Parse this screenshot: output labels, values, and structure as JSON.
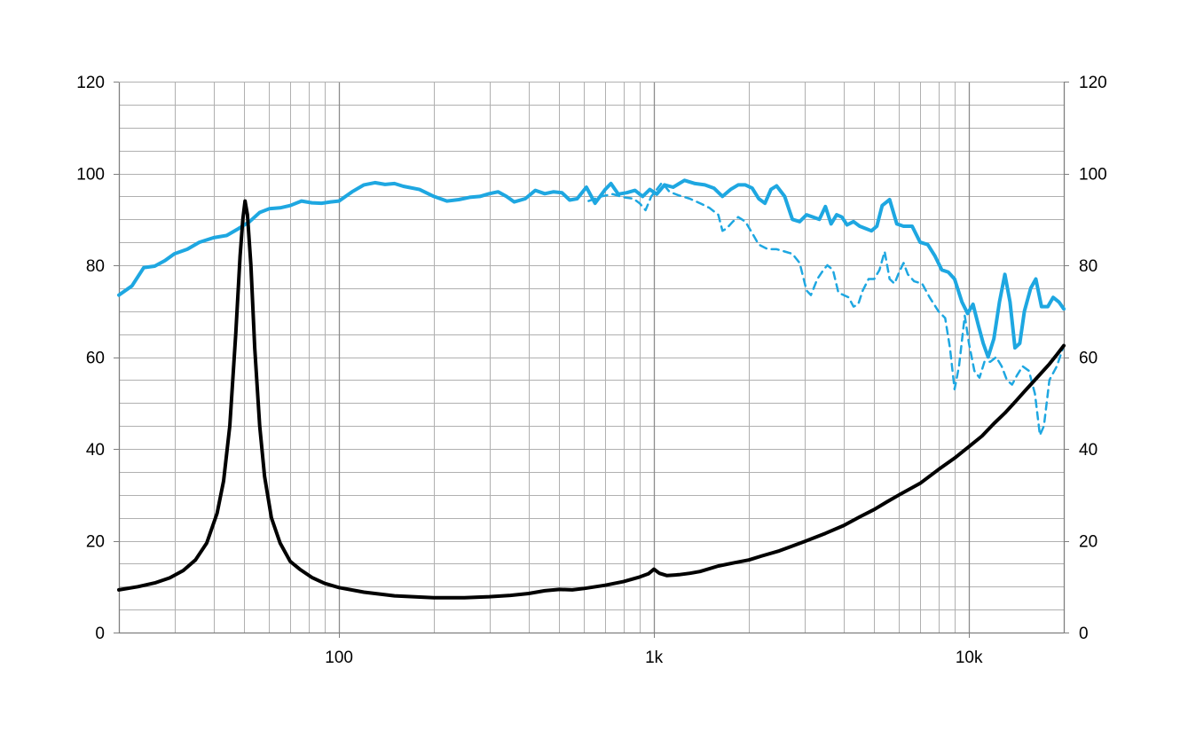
{
  "chart_data": {
    "type": "line",
    "title": "",
    "xlabel": "",
    "ylabel": "",
    "x_scale": "log",
    "xlim": [
      20,
      20000
    ],
    "ylim": [
      0,
      120
    ],
    "y_ticks": [
      0,
      20,
      40,
      60,
      80,
      100,
      120
    ],
    "y_right_ticks": [
      0,
      20,
      40,
      60,
      80,
      100,
      120
    ],
    "x_ticks": [
      {
        "value": 100,
        "label": "100"
      },
      {
        "value": 1000,
        "label": "1k"
      },
      {
        "value": 10000,
        "label": "10k"
      }
    ],
    "grid": true,
    "legend": "none",
    "colors": {
      "response": "#1ea7e1",
      "off_axis": "#1ea7e1",
      "impedance": "#000000",
      "grid": "#a6a6a6"
    },
    "series": [
      {
        "style": "solid",
        "color": "#1ea7e1",
        "points": [
          [
            20,
            73.5
          ],
          [
            22,
            75.5
          ],
          [
            24,
            79.5
          ],
          [
            26,
            79.8
          ],
          [
            28,
            81.0
          ],
          [
            30,
            82.5
          ],
          [
            33,
            83.5
          ],
          [
            36,
            85.0
          ],
          [
            40,
            86.0
          ],
          [
            44,
            86.5
          ],
          [
            48,
            88.0
          ],
          [
            52,
            89.5
          ],
          [
            56,
            91.5
          ],
          [
            60,
            92.3
          ],
          [
            65,
            92.5
          ],
          [
            70,
            93.0
          ],
          [
            76,
            94.0
          ],
          [
            82,
            93.6
          ],
          [
            88,
            93.5
          ],
          [
            94,
            93.8
          ],
          [
            100,
            94.0
          ],
          [
            110,
            96.0
          ],
          [
            120,
            97.5
          ],
          [
            130,
            98.0
          ],
          [
            140,
            97.6
          ],
          [
            150,
            97.8
          ],
          [
            160,
            97.2
          ],
          [
            180,
            96.5
          ],
          [
            200,
            95.0
          ],
          [
            220,
            94.0
          ],
          [
            240,
            94.3
          ],
          [
            260,
            94.8
          ],
          [
            280,
            95.0
          ],
          [
            300,
            95.6
          ],
          [
            320,
            96.0
          ],
          [
            340,
            95.0
          ],
          [
            360,
            93.8
          ],
          [
            390,
            94.5
          ],
          [
            420,
            96.3
          ],
          [
            450,
            95.6
          ],
          [
            480,
            96.0
          ],
          [
            510,
            95.8
          ],
          [
            540,
            94.2
          ],
          [
            570,
            94.5
          ],
          [
            610,
            97.0
          ],
          [
            650,
            93.5
          ],
          [
            700,
            96.5
          ],
          [
            730,
            97.8
          ],
          [
            770,
            95.5
          ],
          [
            820,
            95.8
          ],
          [
            870,
            96.3
          ],
          [
            920,
            95.0
          ],
          [
            970,
            96.5
          ],
          [
            1020,
            95.5
          ],
          [
            1080,
            97.5
          ],
          [
            1150,
            97.0
          ],
          [
            1250,
            98.5
          ],
          [
            1350,
            97.8
          ],
          [
            1450,
            97.5
          ],
          [
            1550,
            96.8
          ],
          [
            1650,
            95.0
          ],
          [
            1750,
            96.5
          ],
          [
            1850,
            97.5
          ],
          [
            1950,
            97.5
          ],
          [
            2050,
            96.8
          ],
          [
            2150,
            94.5
          ],
          [
            2250,
            93.5
          ],
          [
            2350,
            96.5
          ],
          [
            2450,
            97.3
          ],
          [
            2600,
            95.0
          ],
          [
            2750,
            90.0
          ],
          [
            2900,
            89.5
          ],
          [
            3050,
            91.0
          ],
          [
            3200,
            90.5
          ],
          [
            3350,
            90.0
          ],
          [
            3500,
            92.8
          ],
          [
            3650,
            89.0
          ],
          [
            3800,
            91.0
          ],
          [
            3950,
            90.5
          ],
          [
            4100,
            88.8
          ],
          [
            4300,
            89.5
          ],
          [
            4500,
            88.5
          ],
          [
            4700,
            88.0
          ],
          [
            4900,
            87.5
          ],
          [
            5100,
            88.5
          ],
          [
            5300,
            93.0
          ],
          [
            5600,
            94.3
          ],
          [
            5900,
            89.0
          ],
          [
            6200,
            88.5
          ],
          [
            6600,
            88.5
          ],
          [
            7000,
            85.0
          ],
          [
            7400,
            84.5
          ],
          [
            7800,
            82.0
          ],
          [
            8200,
            79.0
          ],
          [
            8600,
            78.5
          ],
          [
            9000,
            77.0
          ],
          [
            9500,
            72.0
          ],
          [
            9900,
            69.5
          ],
          [
            10300,
            71.5
          ],
          [
            10700,
            67.0
          ],
          [
            11100,
            63.0
          ],
          [
            11500,
            60.0
          ],
          [
            12000,
            64.0
          ],
          [
            12500,
            72.0
          ],
          [
            13000,
            78.0
          ],
          [
            13500,
            72.0
          ],
          [
            14000,
            62.0
          ],
          [
            14500,
            63.0
          ],
          [
            15000,
            70.0
          ],
          [
            15700,
            75.0
          ],
          [
            16300,
            77.0
          ],
          [
            17000,
            71.0
          ],
          [
            17800,
            71.0
          ],
          [
            18500,
            73.0
          ],
          [
            19300,
            72.0
          ],
          [
            20000,
            70.5
          ]
        ]
      },
      {
        "style": "dashed",
        "color": "#1ea7e1",
        "points": [
          [
            620,
            94.0
          ],
          [
            680,
            95.0
          ],
          [
            740,
            95.5
          ],
          [
            800,
            94.8
          ],
          [
            860,
            94.5
          ],
          [
            900,
            93.5
          ],
          [
            940,
            92.0
          ],
          [
            980,
            95.0
          ],
          [
            1020,
            96.5
          ],
          [
            1060,
            98.0
          ],
          [
            1120,
            96.0
          ],
          [
            1200,
            95.2
          ],
          [
            1300,
            94.5
          ],
          [
            1400,
            93.5
          ],
          [
            1500,
            92.5
          ],
          [
            1600,
            91.0
          ],
          [
            1650,
            87.5
          ],
          [
            1700,
            88.0
          ],
          [
            1780,
            89.5
          ],
          [
            1850,
            90.5
          ],
          [
            1950,
            89.5
          ],
          [
            2050,
            87.0
          ],
          [
            2150,
            84.5
          ],
          [
            2300,
            83.5
          ],
          [
            2450,
            83.5
          ],
          [
            2600,
            83.0
          ],
          [
            2750,
            82.5
          ],
          [
            2900,
            80.5
          ],
          [
            3050,
            74.5
          ],
          [
            3150,
            73.5
          ],
          [
            3300,
            77.0
          ],
          [
            3450,
            79.0
          ],
          [
            3550,
            80.0
          ],
          [
            3700,
            79.0
          ],
          [
            3850,
            74.0
          ],
          [
            4000,
            73.5
          ],
          [
            4150,
            73.0
          ],
          [
            4300,
            71.0
          ],
          [
            4450,
            71.5
          ],
          [
            4600,
            74.5
          ],
          [
            4800,
            77.0
          ],
          [
            5000,
            77.0
          ],
          [
            5200,
            79.0
          ],
          [
            5400,
            83.0
          ],
          [
            5600,
            77.0
          ],
          [
            5800,
            76.0
          ],
          [
            6000,
            78.5
          ],
          [
            6200,
            80.5
          ],
          [
            6400,
            78.0
          ],
          [
            6700,
            76.5
          ],
          [
            7100,
            76.0
          ],
          [
            7500,
            73.0
          ],
          [
            8000,
            70.0
          ],
          [
            8400,
            68.5
          ],
          [
            8700,
            62.0
          ],
          [
            9000,
            53.0
          ],
          [
            9300,
            58.0
          ],
          [
            9700,
            69.0
          ],
          [
            10000,
            63.0
          ],
          [
            10400,
            57.0
          ],
          [
            10800,
            55.5
          ],
          [
            11200,
            59.0
          ],
          [
            11700,
            59.0
          ],
          [
            12200,
            60.0
          ],
          [
            12700,
            58.0
          ],
          [
            13200,
            55.0
          ],
          [
            13700,
            54.0
          ],
          [
            14200,
            56.0
          ],
          [
            14800,
            58.0
          ],
          [
            15500,
            57.0
          ],
          [
            16200,
            52.0
          ],
          [
            16800,
            43.0
          ],
          [
            17300,
            45.0
          ],
          [
            18000,
            55.0
          ],
          [
            19000,
            58.0
          ],
          [
            20000,
            62.5
          ]
        ]
      },
      {
        "style": "solid",
        "color": "#000000",
        "points": [
          [
            20,
            9.3
          ],
          [
            23,
            10.0
          ],
          [
            26,
            10.8
          ],
          [
            29,
            11.9
          ],
          [
            32,
            13.5
          ],
          [
            35,
            15.8
          ],
          [
            38,
            19.5
          ],
          [
            41,
            26.0
          ],
          [
            43,
            33.0
          ],
          [
            45,
            45.0
          ],
          [
            47,
            65.0
          ],
          [
            48.5,
            82.0
          ],
          [
            49.5,
            90.0
          ],
          [
            50.3,
            94.0
          ],
          [
            51.2,
            91.0
          ],
          [
            52.5,
            80.0
          ],
          [
            54,
            62.0
          ],
          [
            56,
            45.0
          ],
          [
            58,
            34.0
          ],
          [
            61,
            25.0
          ],
          [
            65,
            19.5
          ],
          [
            70,
            15.5
          ],
          [
            75,
            13.8
          ],
          [
            82,
            12.0
          ],
          [
            90,
            10.7
          ],
          [
            100,
            9.8
          ],
          [
            120,
            8.8
          ],
          [
            150,
            8.0
          ],
          [
            200,
            7.6
          ],
          [
            250,
            7.6
          ],
          [
            300,
            7.8
          ],
          [
            350,
            8.1
          ],
          [
            400,
            8.5
          ],
          [
            450,
            9.1
          ],
          [
            500,
            9.4
          ],
          [
            550,
            9.3
          ],
          [
            600,
            9.6
          ],
          [
            700,
            10.3
          ],
          [
            800,
            11.1
          ],
          [
            900,
            12.1
          ],
          [
            960,
            12.8
          ],
          [
            1000,
            13.8
          ],
          [
            1040,
            12.9
          ],
          [
            1100,
            12.4
          ],
          [
            1200,
            12.6
          ],
          [
            1300,
            12.9
          ],
          [
            1400,
            13.3
          ],
          [
            1600,
            14.5
          ],
          [
            1800,
            15.2
          ],
          [
            2000,
            15.8
          ],
          [
            2200,
            16.7
          ],
          [
            2500,
            17.8
          ],
          [
            3000,
            19.8
          ],
          [
            3500,
            21.6
          ],
          [
            4000,
            23.3
          ],
          [
            4500,
            25.2
          ],
          [
            5000,
            26.8
          ],
          [
            5500,
            28.5
          ],
          [
            6000,
            30.0
          ],
          [
            7000,
            32.5
          ],
          [
            8000,
            35.5
          ],
          [
            9000,
            38.0
          ],
          [
            10000,
            40.5
          ],
          [
            11000,
            42.8
          ],
          [
            12000,
            45.5
          ],
          [
            13000,
            47.8
          ],
          [
            14000,
            50.2
          ],
          [
            15000,
            52.5
          ],
          [
            16000,
            54.6
          ],
          [
            17000,
            56.6
          ],
          [
            18000,
            58.5
          ],
          [
            19000,
            60.5
          ],
          [
            20000,
            62.5
          ]
        ]
      }
    ]
  }
}
